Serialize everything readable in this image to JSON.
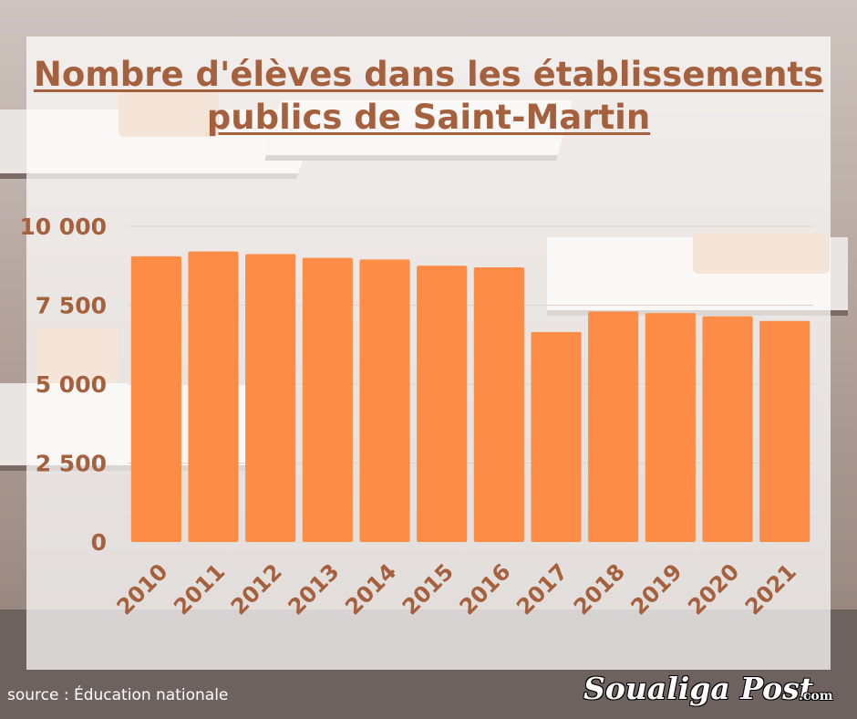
{
  "header": {
    "title_line1": "Nombre d'élèves dans les établissements",
    "title_line2": "publics de Saint-Martin"
  },
  "footer": {
    "source": "source : Éducation nationale",
    "logo": "Soualiga Post",
    "logo_suffix": ".com"
  },
  "colors": {
    "bar": "#fc8c46",
    "title": "#a5613e",
    "tick_label": "#a5613e",
    "grid": "#d9d2cf"
  },
  "chart_data": {
    "type": "bar",
    "title": "Nombre d'élèves dans les établissements publics de Saint-Martin",
    "categories": [
      "2010",
      "2011",
      "2012",
      "2013",
      "2014",
      "2015",
      "2016",
      "2017",
      "2018",
      "2019",
      "2020",
      "2021"
    ],
    "values": [
      9050,
      9200,
      9120,
      9000,
      8950,
      8750,
      8700,
      6650,
      7300,
      7250,
      7150,
      7000
    ],
    "ylim": [
      0,
      10000
    ],
    "yticks": [
      0,
      2500,
      5000,
      7500,
      10000
    ],
    "ytick_labels": [
      "0",
      "2 500",
      "5 000",
      "7 500",
      "10 000"
    ],
    "grid": true,
    "xlabel": "",
    "ylabel": ""
  }
}
